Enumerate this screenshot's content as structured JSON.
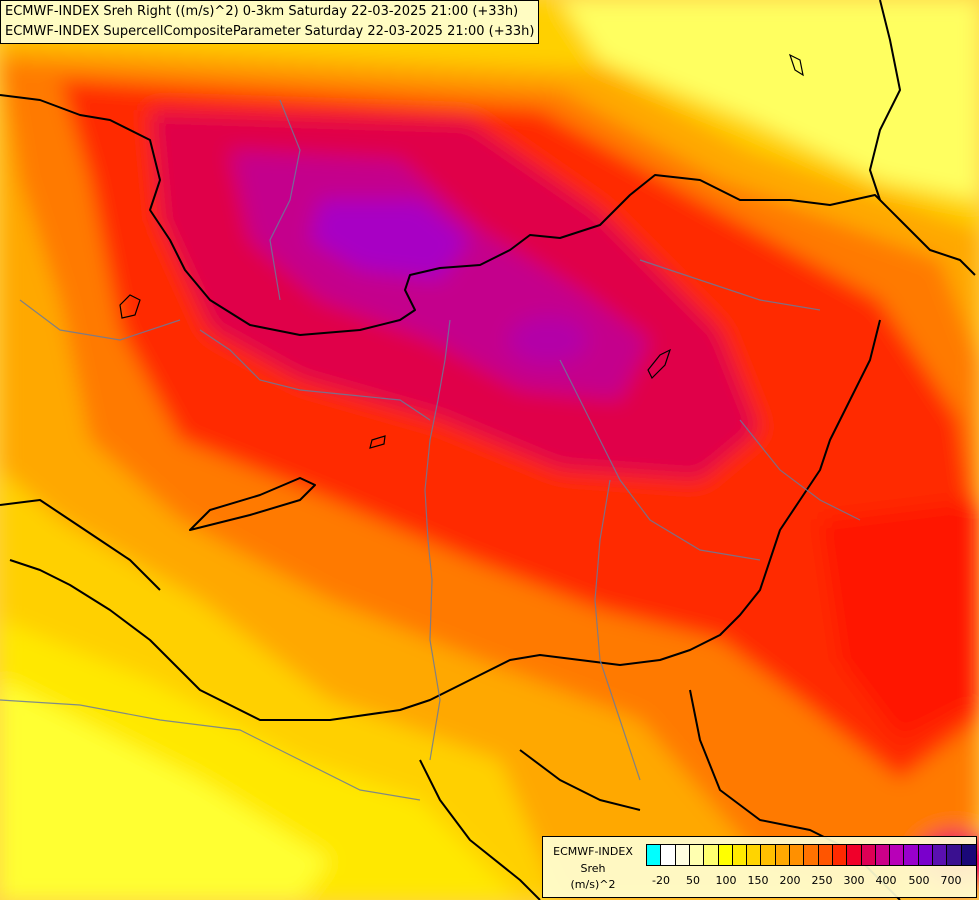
{
  "header": {
    "line1": "ECMWF-INDEX Sreh Right ((m/s)^2) 0-3km Saturday 22-03-2025 21:00 (+33h)",
    "line2": "ECMWF-INDEX SupercellCompositeParameter Saturday 22-03-2025 21:00 (+33h)"
  },
  "legend": {
    "source": "ECMWF-INDEX",
    "variable": "Sreh",
    "unit": "(m/s)^2",
    "colors": [
      "#00ffff",
      "#ffffff",
      "#fffde0",
      "#ffffb0",
      "#ffff70",
      "#ffff00",
      "#ffea00",
      "#ffd400",
      "#ffbf00",
      "#ffa800",
      "#ff9000",
      "#ff7200",
      "#ff5500",
      "#ff2a00",
      "#f0002a",
      "#dd0055",
      "#cc0088",
      "#b800b8",
      "#9900cc",
      "#7a00cc",
      "#5a10b0",
      "#3a1090",
      "#1a0878"
    ],
    "ticks": [
      "-20",
      "50",
      "100",
      "150",
      "200",
      "250",
      "300",
      "400",
      "500",
      "700"
    ]
  }
}
